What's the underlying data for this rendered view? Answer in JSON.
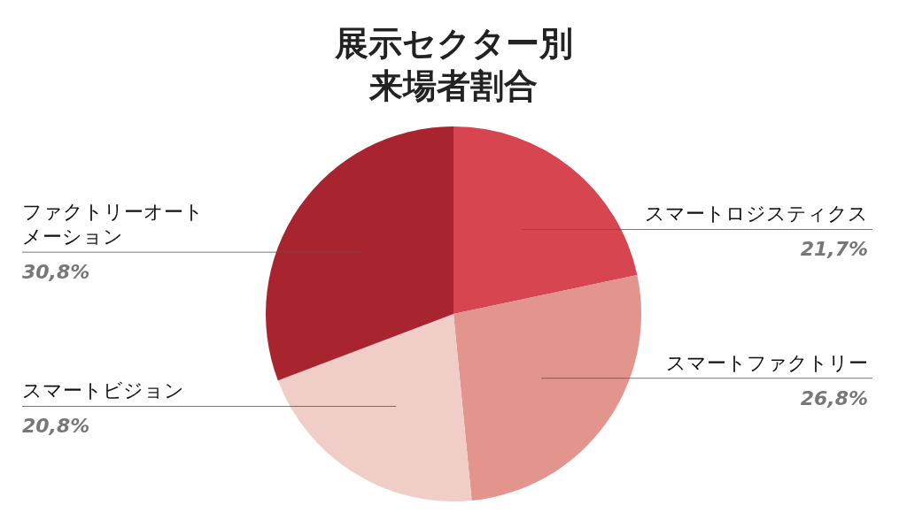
{
  "chart_data": {
    "type": "pie",
    "title": "展示セクター別来場者割合",
    "categories": [
      "スマートロジスティクス",
      "スマートファクトリー",
      "スマートビジョン",
      "ファクトリーオートメーション"
    ],
    "values": [
      21.7,
      26.8,
      20.8,
      30.8
    ],
    "colors": [
      "#d64550",
      "#e3958d",
      "#f0cdc7",
      "#a82530"
    ],
    "value_labels": [
      "21,7%",
      "26,8%",
      "20,8%",
      "30,8%"
    ]
  }
}
